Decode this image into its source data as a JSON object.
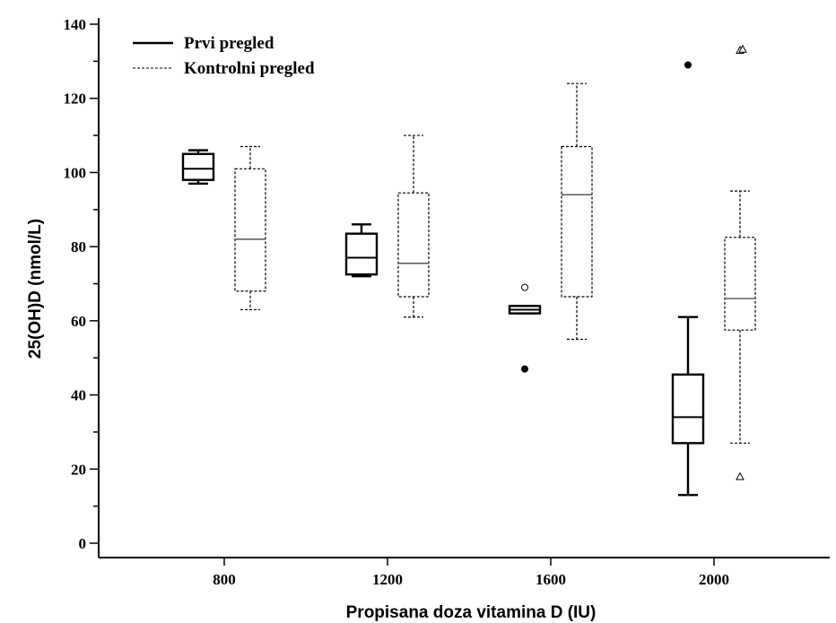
{
  "chart_data": {
    "type": "box",
    "xlabel": "Propisana doza vitamina D (IU)",
    "ylabel": "25(OH)D (nmol/L)",
    "ylim": [
      0,
      140
    ],
    "yticks": [
      "0",
      "20",
      "40",
      "60",
      "80",
      "100",
      "120",
      "140"
    ],
    "categories": [
      "800",
      "1200",
      "1600",
      "2000"
    ],
    "series": [
      {
        "name": "Prvi pregled",
        "line_style": "solid",
        "boxes": [
          {
            "category": "800",
            "min": 97,
            "q1": 98,
            "median": 101,
            "q3": 105,
            "max": 106,
            "outliers": []
          },
          {
            "category": "1200",
            "min": 72,
            "q1": 72.5,
            "median": 77,
            "q3": 83.5,
            "max": 86,
            "outliers": []
          },
          {
            "category": "1600",
            "min": 62,
            "q1": 62,
            "median": 63,
            "q3": 64,
            "max": 64,
            "outliers": [
              {
                "value": 69,
                "marker": "open-circle"
              },
              {
                "value": 47,
                "marker": "filled-circle"
              }
            ]
          },
          {
            "category": "2000",
            "min": 13,
            "q1": 27,
            "median": 34,
            "q3": 45.5,
            "max": 61,
            "outliers": [
              {
                "value": 129,
                "marker": "filled-circle"
              }
            ]
          }
        ]
      },
      {
        "name": "Kontrolni pregled",
        "line_style": "dashed",
        "boxes": [
          {
            "category": "800",
            "min": 63,
            "q1": 68,
            "median": 82,
            "q3": 101,
            "max": 107,
            "outliers": []
          },
          {
            "category": "1200",
            "min": 61,
            "q1": 66.5,
            "median": 75.5,
            "q3": 94.5,
            "max": 110,
            "outliers": []
          },
          {
            "category": "1600",
            "min": 55,
            "q1": 66.5,
            "median": 94,
            "q3": 107,
            "max": 124,
            "outliers": []
          },
          {
            "category": "2000",
            "min": 27,
            "q1": 57.5,
            "median": 66,
            "q3": 82.5,
            "max": 95,
            "outliers": [
              {
                "value": 133,
                "marker": "triangle"
              },
              {
                "value": 133.3,
                "marker": "triangle"
              },
              {
                "value": 18,
                "marker": "triangle"
              }
            ]
          }
        ]
      }
    ],
    "legend": {
      "position": "top-left"
    }
  }
}
